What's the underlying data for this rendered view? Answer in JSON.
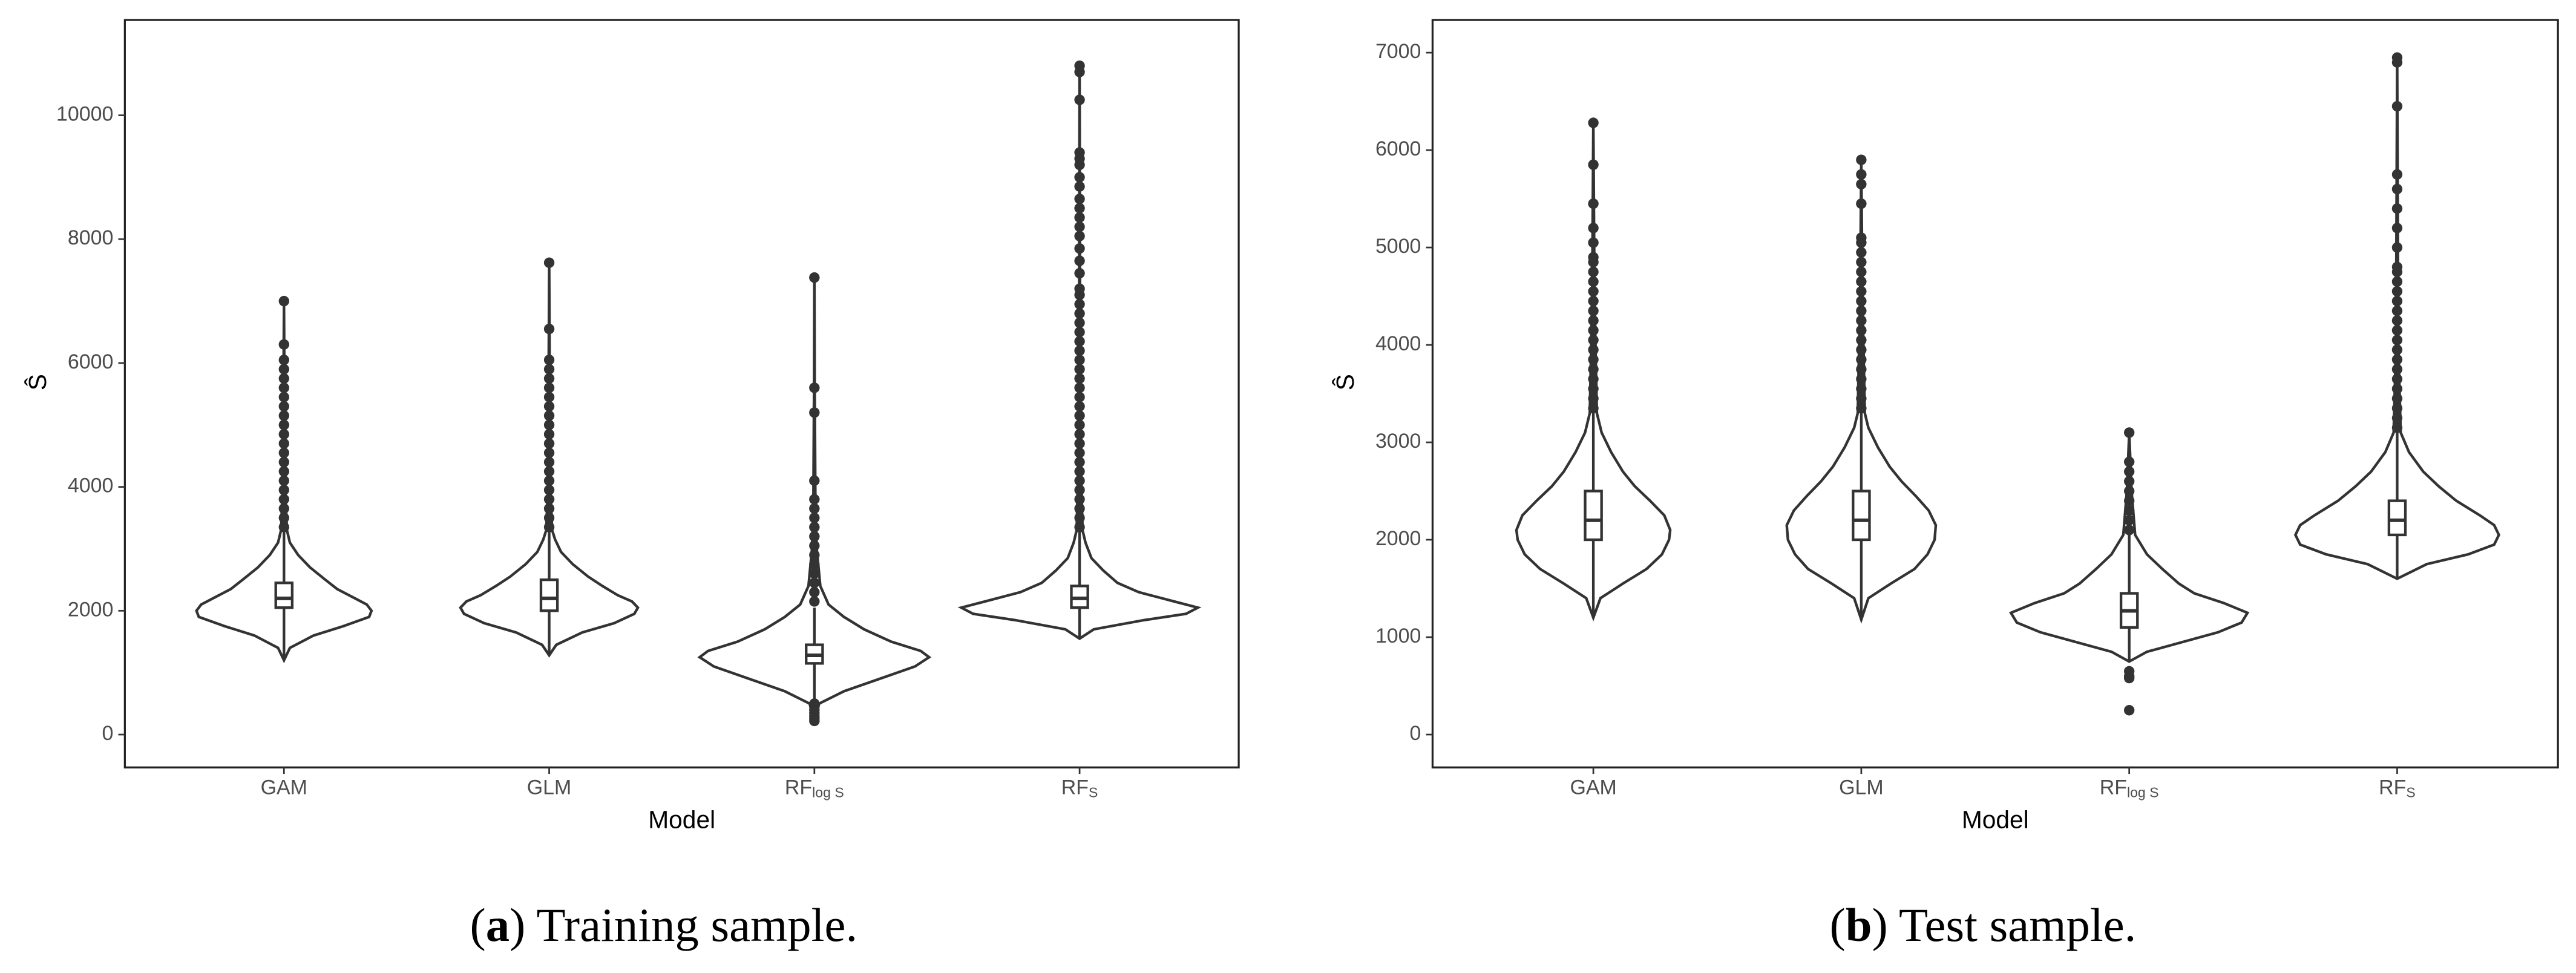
{
  "chart_data": [
    {
      "type": "violin",
      "xlabel": "Model",
      "ylabel": "Ŝ",
      "categories": [
        "GAM",
        "GLM",
        "RF",
        "RF"
      ],
      "category_subscripts": [
        null,
        null,
        "log S",
        "S"
      ],
      "caption": "(a) Training sample.",
      "caption_bold": "a",
      "color": "#333333",
      "ylim": [
        -530,
        11540
      ],
      "yticks": [
        0,
        2000,
        4000,
        6000,
        8000,
        10000
      ],
      "violins": [
        {
          "y": [
            1200,
            1400,
            1600,
            1750,
            1900,
            2000,
            2100,
            2200,
            2350,
            2500,
            2700,
            2900,
            3100,
            3300,
            4000,
            5500,
            7000
          ],
          "density": [
            0,
            0.05,
            0.25,
            0.5,
            0.72,
            0.74,
            0.7,
            0.6,
            0.45,
            0.35,
            0.22,
            0.12,
            0.05,
            0.025,
            0.01,
            0.004,
            0
          ],
          "q1": 2050,
          "median": 2200,
          "q3": 2450,
          "whisker_low": 1200,
          "whisker_high": 3300,
          "outliers": [
            3350,
            3500,
            3650,
            3800,
            3950,
            4100,
            4250,
            4400,
            4550,
            4700,
            4850,
            5000,
            5150,
            5300,
            5450,
            5600,
            5750,
            5900,
            6050,
            6300,
            7000
          ]
        },
        {
          "y": [
            1280,
            1450,
            1650,
            1800,
            1950,
            2050,
            2150,
            2250,
            2400,
            2550,
            2750,
            2950,
            3150,
            3300,
            4000,
            6000,
            7620
          ],
          "density": [
            0,
            0.06,
            0.28,
            0.55,
            0.72,
            0.75,
            0.7,
            0.58,
            0.45,
            0.33,
            0.2,
            0.1,
            0.05,
            0.025,
            0.01,
            0.004,
            0
          ],
          "q1": 2000,
          "median": 2200,
          "q3": 2500,
          "whisker_low": 1280,
          "whisker_high": 3300,
          "outliers": [
            3350,
            3500,
            3650,
            3800,
            3950,
            4100,
            4250,
            4400,
            4550,
            4700,
            4850,
            5000,
            5150,
            5300,
            5450,
            5600,
            5750,
            5900,
            6050,
            6550,
            7620
          ]
        },
        {
          "y": [
            200,
            500,
            700,
            900,
            1100,
            1250,
            1350,
            1500,
            1700,
            1900,
            2100,
            2400,
            3000,
            3900,
            5600,
            7380
          ],
          "density": [
            0,
            0.04,
            0.25,
            0.55,
            0.85,
            0.97,
            0.9,
            0.65,
            0.42,
            0.25,
            0.12,
            0.05,
            0.02,
            0.008,
            0.003,
            0
          ],
          "q1": 1150,
          "median": 1280,
          "q3": 1450,
          "whisker_low": 550,
          "whisker_high": 2050,
          "outliers": [
            220,
            260,
            300,
            350,
            400,
            450,
            500,
            2150,
            2300,
            2450,
            2600,
            2750,
            2900,
            3050,
            3200,
            3350,
            3500,
            3650,
            3800,
            4100,
            5200,
            5600,
            7380
          ]
        },
        {
          "y": [
            1550,
            1700,
            1850,
            1950,
            2050,
            2150,
            2300,
            2450,
            2650,
            2850,
            3100,
            3300,
            4500,
            7000,
            10800
          ],
          "density": [
            0,
            0.12,
            0.55,
            0.9,
            1.0,
            0.8,
            0.5,
            0.32,
            0.2,
            0.1,
            0.05,
            0.025,
            0.01,
            0.004,
            0
          ],
          "q1": 2050,
          "median": 2200,
          "q3": 2400,
          "whisker_low": 1550,
          "whisker_high": 3300,
          "outliers": [
            3350,
            3500,
            3650,
            3800,
            3950,
            4100,
            4250,
            4400,
            4550,
            4700,
            4850,
            5000,
            5150,
            5300,
            5450,
            5600,
            5750,
            5900,
            6050,
            6200,
            6350,
            6500,
            6650,
            6800,
            6950,
            7100,
            7200,
            7450,
            7650,
            7850,
            8050,
            8200,
            8350,
            8500,
            8650,
            8850,
            9000,
            9200,
            9300,
            9400,
            10250,
            10700,
            10800
          ]
        }
      ]
    },
    {
      "type": "violin",
      "xlabel": "Model",
      "ylabel": "Ŝ",
      "categories": [
        "GAM",
        "GLM",
        "RF",
        "RF"
      ],
      "category_subscripts": [
        null,
        null,
        "log S",
        "S"
      ],
      "caption": "(b) Test sample.",
      "caption_bold": "b",
      "color": "#333333",
      "ylim": [
        -337,
        7336
      ],
      "yticks": [
        0,
        1000,
        2000,
        3000,
        4000,
        5000,
        6000,
        7000
      ],
      "violins": [
        {
          "y": [
            1200,
            1400,
            1550,
            1700,
            1850,
            2000,
            2100,
            2250,
            2400,
            2550,
            2700,
            2900,
            3100,
            3300,
            4500,
            6280
          ],
          "density": [
            0,
            0.06,
            0.25,
            0.45,
            0.58,
            0.64,
            0.65,
            0.6,
            0.48,
            0.35,
            0.25,
            0.15,
            0.07,
            0.03,
            0.01,
            0
          ],
          "q1": 2000,
          "median": 2200,
          "q3": 2500,
          "whisker_low": 1200,
          "whisker_high": 3300,
          "outliers": [
            3350,
            3450,
            3550,
            3650,
            3750,
            3850,
            3950,
            4050,
            4150,
            4250,
            4350,
            4450,
            4550,
            4650,
            4750,
            4850,
            4900,
            5050,
            5200,
            5450,
            5850,
            6280
          ]
        },
        {
          "y": [
            1180,
            1400,
            1550,
            1700,
            1850,
            2000,
            2150,
            2300,
            2450,
            2600,
            2750,
            2950,
            3150,
            3300,
            4500,
            5900
          ],
          "density": [
            0,
            0.06,
            0.25,
            0.45,
            0.56,
            0.62,
            0.63,
            0.57,
            0.46,
            0.34,
            0.24,
            0.14,
            0.06,
            0.03,
            0.01,
            0
          ],
          "q1": 2000,
          "median": 2200,
          "q3": 2500,
          "whisker_low": 1180,
          "whisker_high": 3300,
          "outliers": [
            3350,
            3450,
            3550,
            3650,
            3750,
            3850,
            3950,
            4050,
            4150,
            4250,
            4350,
            4450,
            4550,
            4650,
            4750,
            4850,
            4950,
            5050,
            5100,
            5450,
            5650,
            5750,
            5900
          ]
        },
        {
          "y": [
            750,
            850,
            950,
            1050,
            1150,
            1250,
            1350,
            1450,
            1550,
            1700,
            1850,
            2050,
            2500,
            3100
          ],
          "density": [
            0,
            0.15,
            0.45,
            0.75,
            0.95,
            1.0,
            0.8,
            0.55,
            0.42,
            0.28,
            0.15,
            0.05,
            0.02,
            0
          ],
          "q1": 1100,
          "median": 1270,
          "q3": 1450,
          "whisker_low": 750,
          "whisker_high": 2050,
          "outliers": [
            250,
            580,
            600,
            650,
            2100,
            2200,
            2300,
            2400,
            2500,
            2600,
            2700,
            2800,
            3100
          ]
        },
        {
          "y": [
            1600,
            1750,
            1850,
            1950,
            2050,
            2150,
            2250,
            2400,
            2550,
            2700,
            2900,
            3100,
            4000,
            6950
          ],
          "density": [
            0,
            0.25,
            0.6,
            0.82,
            0.86,
            0.82,
            0.7,
            0.5,
            0.35,
            0.22,
            0.1,
            0.03,
            0.01,
            0
          ],
          "q1": 2050,
          "median": 2200,
          "q3": 2400,
          "whisker_low": 1600,
          "whisker_high": 3100,
          "outliers": [
            3150,
            3250,
            3350,
            3450,
            3550,
            3650,
            3750,
            3850,
            3950,
            4050,
            4150,
            4250,
            4350,
            4450,
            4550,
            4650,
            4750,
            4800,
            5000,
            5200,
            5400,
            5600,
            5750,
            6450,
            6900,
            6950
          ]
        }
      ]
    }
  ]
}
